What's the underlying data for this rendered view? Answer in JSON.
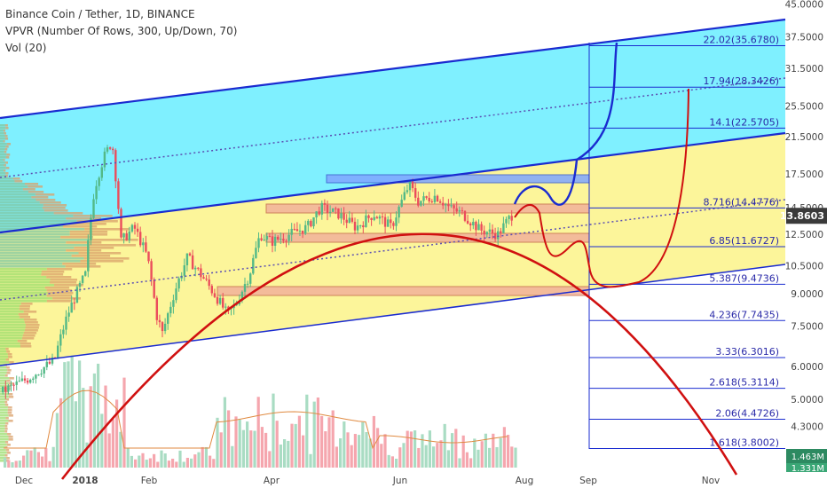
{
  "header": {
    "symbol": "Binance Coin / Tether, 1D, BINANCE",
    "vpvr": "VPVR (Number Of Rows, 300, Up/Down, 70)",
    "vol": "Vol (20)"
  },
  "colors": {
    "channel_upper_fill": "#7ff0ff",
    "channel_lower_fill": "#fcf59a",
    "channel_line": "#1a2bd0",
    "dotted_line": "#5b4fb3",
    "arc": "#d01010",
    "blue_path": "#1a2bd0",
    "fib_line": "#1a2bd0",
    "candle_up": "#53b987",
    "candle_down": "#eb4d5c",
    "vol_up": "#a9dcc3",
    "vol_down": "#f5a6ae",
    "price_badge": "#3a3a3a",
    "vol_badge": "#2d8a61"
  },
  "chart_data": {
    "type": "candlestick",
    "title": "Binance Coin / Tether, 1D, BINANCE",
    "y_scale": "log",
    "y_ticks": [
      "45.0000",
      "37.5000",
      "31.5000",
      "25.5000",
      "21.5000",
      "17.5000",
      "14.5000",
      "12.5000",
      "10.5000",
      "9.0000",
      "7.5000",
      "6.0000",
      "5.0000",
      "4.3000"
    ],
    "x_ticks": [
      "Dec",
      "2018",
      "Feb",
      "Apr",
      "Jun",
      "Aug",
      "Sep",
      "Nov"
    ],
    "current_price": "13.8603",
    "current_volume": "1.463M",
    "current_volume_ma": "1.331M",
    "fib_levels": [
      {
        "ratio": "22.02",
        "price": "35.6780"
      },
      {
        "ratio": "17.94",
        "price": "28.3426"
      },
      {
        "ratio": "14.1",
        "price": "22.5705"
      },
      {
        "ratio": "8.716",
        "price": "14.4776"
      },
      {
        "ratio": "6.85",
        "price": "11.6727"
      },
      {
        "ratio": "5.387",
        "price": "9.4736"
      },
      {
        "ratio": "4.236",
        "price": "7.7435"
      },
      {
        "ratio": "3.33",
        "price": "6.3016"
      },
      {
        "ratio": "2.618",
        "price": "5.3114"
      },
      {
        "ratio": "2.06",
        "price": "4.4726"
      },
      {
        "ratio": "1.618",
        "price": "3.8002"
      }
    ]
  }
}
